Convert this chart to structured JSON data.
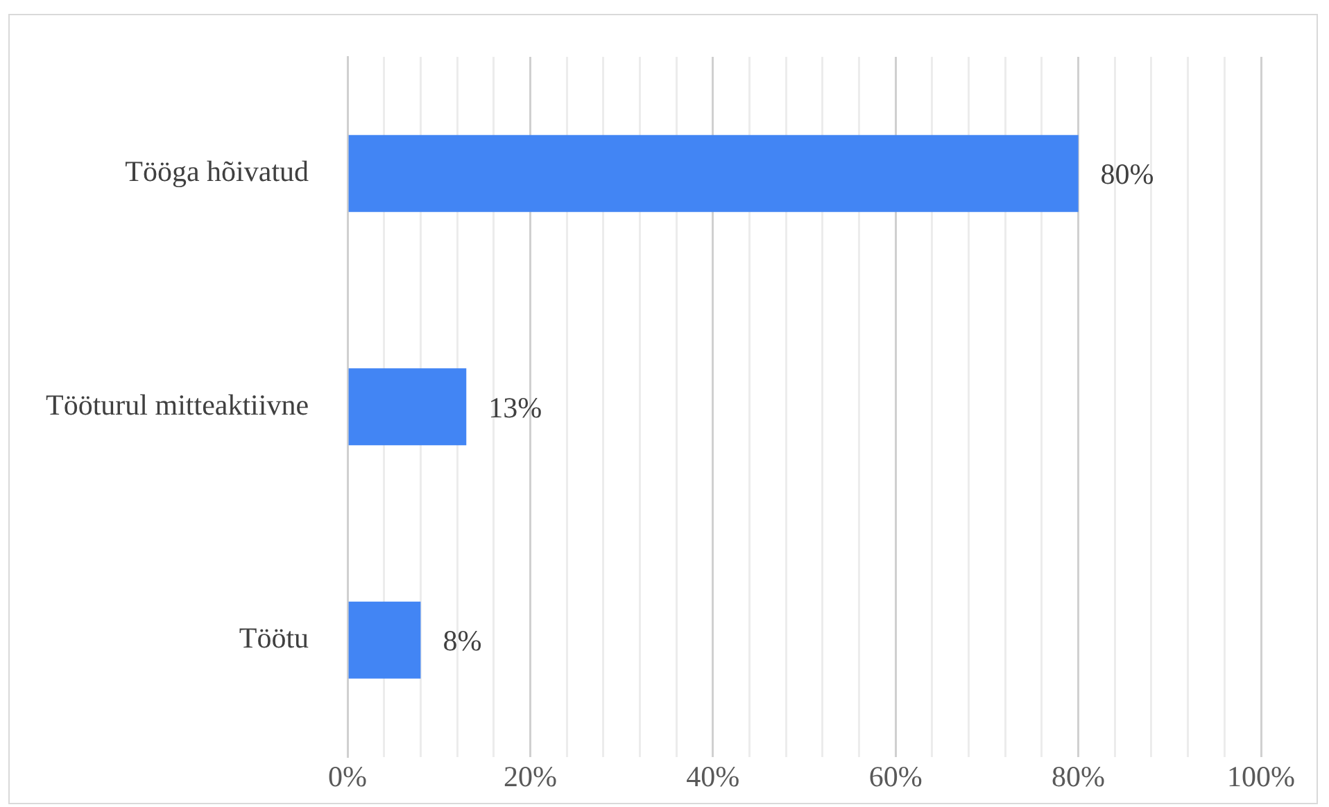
{
  "chart_data": {
    "type": "bar",
    "orientation": "horizontal",
    "categories": [
      "Tööga hõivatud",
      "Tööturul mitteaktiivne",
      "Töötu"
    ],
    "values": [
      80,
      13,
      8
    ],
    "color": "#4285f4",
    "value_labels": [
      "80%",
      "13%",
      "8%"
    ],
    "xlim": [
      0,
      100
    ],
    "xticks": [
      {
        "value": 0,
        "label": "0%"
      },
      {
        "value": 4,
        "label": null
      },
      {
        "value": 8,
        "label": null
      },
      {
        "value": 12,
        "label": null
      },
      {
        "value": 16,
        "label": null
      },
      {
        "value": 20,
        "label": "20%"
      },
      {
        "value": 24,
        "label": null
      },
      {
        "value": 28,
        "label": null
      },
      {
        "value": 32,
        "label": null
      },
      {
        "value": 36,
        "label": null
      },
      {
        "value": 40,
        "label": "40%"
      },
      {
        "value": 44,
        "label": null
      },
      {
        "value": 48,
        "label": null
      },
      {
        "value": 52,
        "label": null
      },
      {
        "value": 56,
        "label": null
      },
      {
        "value": 60,
        "label": "60%"
      },
      {
        "value": 64,
        "label": null
      },
      {
        "value": 68,
        "label": null
      },
      {
        "value": 72,
        "label": null
      },
      {
        "value": 76,
        "label": null
      },
      {
        "value": 80,
        "label": "80%"
      },
      {
        "value": 84,
        "label": null
      },
      {
        "value": 88,
        "label": null
      },
      {
        "value": 92,
        "label": null
      },
      {
        "value": 96,
        "label": null
      },
      {
        "value": 100,
        "label": "100%"
      }
    ],
    "grid": "x",
    "legend": false
  }
}
